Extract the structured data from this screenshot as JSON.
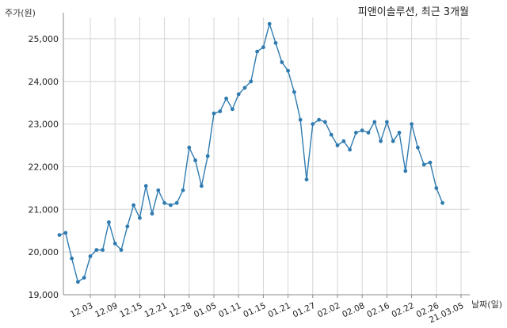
{
  "chart_data": {
    "type": "line",
    "title": "피앤이솔루션, 최근 3개월",
    "ylabel": "주가(원)",
    "xlabel": "날짜(일)",
    "ylim": [
      19000,
      25500
    ],
    "yticks": [
      "19,000",
      "20,000",
      "21,000",
      "22,000",
      "23,000",
      "24,000",
      "25,000"
    ],
    "ytick_values": [
      19000,
      20000,
      21000,
      22000,
      23000,
      24000,
      25000
    ],
    "xtick_labels": [
      "12.03",
      "12.09",
      "12.15",
      "12.21",
      "12.28",
      "01.05",
      "01.11",
      "01.15",
      "01.21",
      "01.27",
      "02.02",
      "02.08",
      "02.16",
      "02.22",
      "02.26",
      "21.03.05"
    ],
    "xtick_index": [
      5,
      9,
      13,
      17,
      21,
      25,
      29,
      33,
      37,
      41,
      45,
      49,
      53,
      57,
      61,
      65
    ],
    "grid": true,
    "line_color": "#2f7bb0",
    "series": [
      {
        "values": [
          20400,
          20450,
          19850,
          19300,
          19400,
          19900,
          20050,
          20050,
          20700,
          20200,
          20050,
          20600,
          21100,
          20800,
          21550,
          20900,
          21450,
          21150,
          21100,
          21150,
          21450,
          22450,
          22150,
          21550,
          22250,
          23250,
          23300,
          23600,
          23350,
          23700,
          23850,
          24000,
          24700,
          24800,
          25350,
          24900,
          24450,
          24250,
          23750,
          23100,
          21700,
          23000,
          23100,
          23050,
          22750,
          22500,
          22600,
          22400,
          22800,
          22850,
          22800,
          23050,
          22600,
          23050,
          22600,
          22800,
          21900,
          23000,
          22450,
          22050,
          22100,
          21500,
          21150
        ]
      }
    ]
  }
}
